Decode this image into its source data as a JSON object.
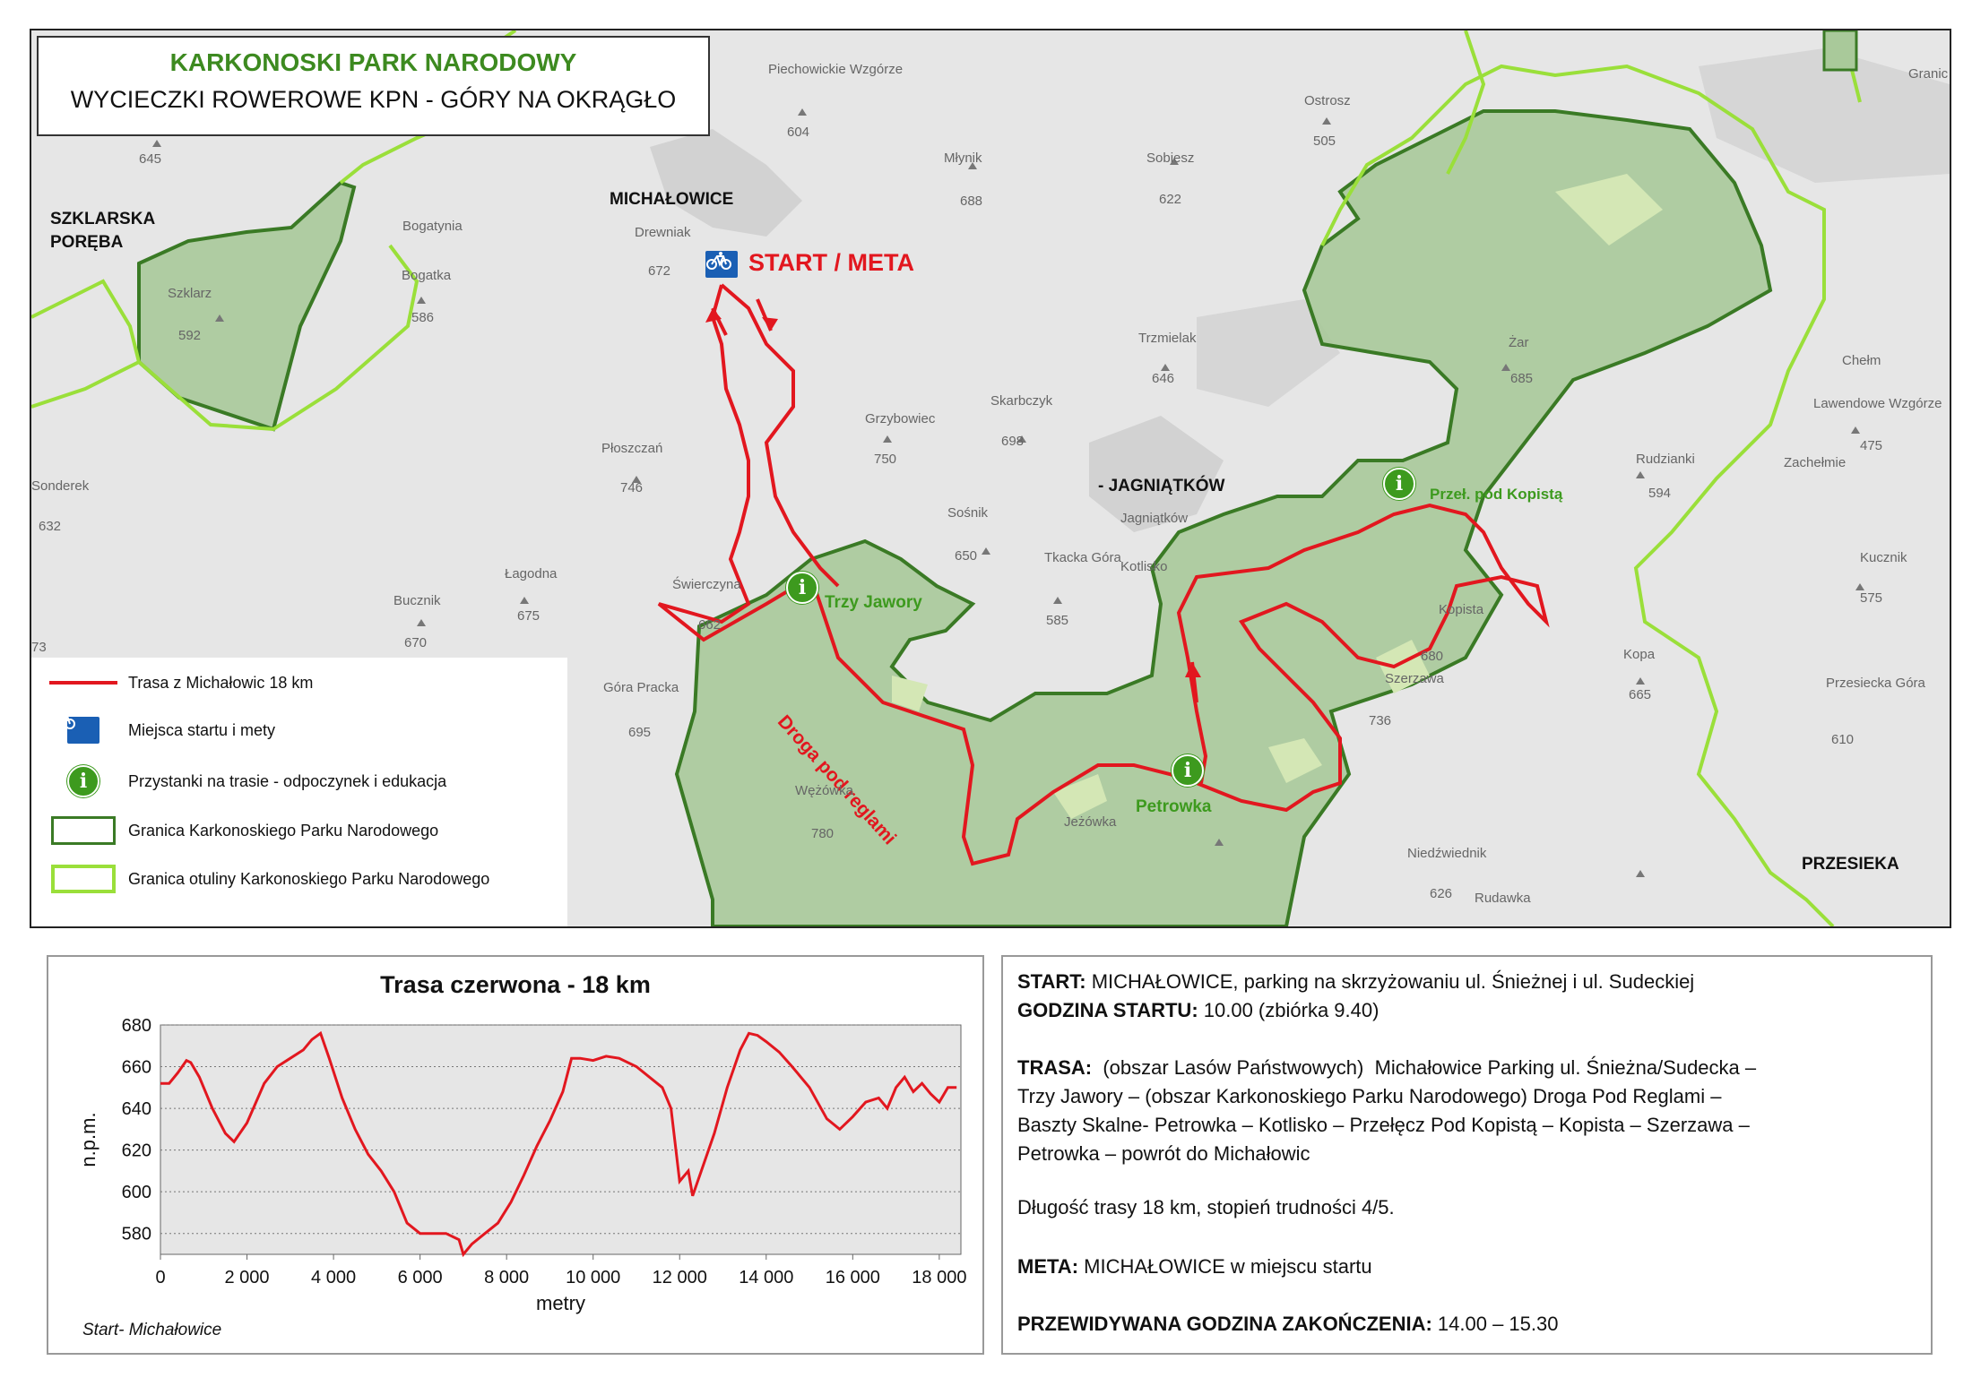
{
  "map": {
    "title": "KARKONOSKI PARK NARODOWY",
    "subtitle": "WYCIECZKI ROWEROWE KPN - GÓRY NA OKRĄGŁO",
    "start_label": "START / META",
    "towns": {
      "szklarska": "SZKLARSKA",
      "poreba": "PORĘBA",
      "michalowice": "MICHAŁOWICE",
      "jagniatkow": "- JAGNIĄTKÓW",
      "przesieka": "PRZESIEKA"
    },
    "stops": {
      "trzy_jawory": "Trzy Jawory",
      "petrowka": "Petrowka",
      "kopista": "Przeł. pod Kopistą"
    },
    "route_label": "Droga pod reglami",
    "places": [
      {
        "name": "Piechowickie Wzgórze",
        "elev": "604"
      },
      {
        "name": "Ostrosz",
        "elev": "505"
      },
      {
        "name": "Młynik",
        "elev": "688"
      },
      {
        "name": "Sobiesz",
        "elev": "622"
      },
      {
        "name": "Bogatynia",
        "elev": ""
      },
      {
        "name": "Bogatka",
        "elev": "586"
      },
      {
        "name": "Drewniak",
        "elev": "672"
      },
      {
        "name": "Szklarz",
        "elev": "592"
      },
      {
        "name": "Trzmielak",
        "elev": "646"
      },
      {
        "name": "Żar",
        "elev": "685"
      },
      {
        "name": "Chełm",
        "elev": ""
      },
      {
        "name": "Lawendowe Wzgórze",
        "elev": "475"
      },
      {
        "name": "Grzybowiec",
        "elev": "750"
      },
      {
        "name": "Skarbczyk",
        "elev": "698"
      },
      {
        "name": "Płoszczań",
        "elev": "746"
      },
      {
        "name": "Rudzianki",
        "elev": "594"
      },
      {
        "name": "Zachełmie",
        "elev": ""
      },
      {
        "name": "Sośnik",
        "elev": "650"
      },
      {
        "name": "Tkacka Góra",
        "elev": "585"
      },
      {
        "name": "Łagodna",
        "elev": "675"
      },
      {
        "name": "Kucznik",
        "elev": "575"
      },
      {
        "name": "Bucznik",
        "elev": "670"
      },
      {
        "name": "Kopista",
        "elev": "680"
      },
      {
        "name": "Szerzawa",
        "elev": "736"
      },
      {
        "name": "Kopa",
        "elev": "665"
      },
      {
        "name": "Przesiecka Góra",
        "elev": "610"
      },
      {
        "name": "Góra Pracka",
        "elev": "695"
      },
      {
        "name": "Wężówka",
        "elev": "780"
      },
      {
        "name": "Jeżówka",
        "elev": ""
      },
      {
        "name": "Niedźwiednik",
        "elev": "626"
      },
      {
        "name": "Rudawka",
        "elev": ""
      },
      {
        "name": "Sonderek",
        "elev": "632"
      },
      {
        "name": "Jagniątków",
        "elev": ""
      },
      {
        "name": "Kotlisko",
        "elev": ""
      },
      {
        "name": "Świerczyna",
        "elev": "662"
      },
      {
        "name": "",
        "elev": "645"
      },
      {
        "name": "",
        "elev": "73"
      },
      {
        "name": "Granic",
        "elev": ""
      }
    ]
  },
  "legend": {
    "route": "Trasa z Michałowic 18 km",
    "start": "Miejsca startu i mety",
    "stops": "Przystanki na trasie - odpoczynek i edukacja",
    "park_border": "Granica Karkonoskiego Parku Narodowego",
    "buffer_border": "Granica otuliny Karkonoskiego Parku Narodowego"
  },
  "chart_note": "Start- Michałowice",
  "chart_data": {
    "type": "line",
    "title": "Trasa czerwona - 18 km",
    "xlabel": "metry",
    "ylabel": "n.p.m.",
    "xlim": [
      0,
      18500
    ],
    "ylim": [
      570,
      680
    ],
    "yticks": [
      580,
      600,
      620,
      640,
      660,
      680
    ],
    "xticks": [
      0,
      2000,
      4000,
      6000,
      8000,
      10000,
      12000,
      14000,
      16000,
      18000
    ],
    "xtick_labels": [
      "0",
      "2 000",
      "4 000",
      "6 000",
      "8 000",
      "10 000",
      "12 000",
      "14 000",
      "16 000",
      "18 000"
    ],
    "grid": true,
    "color": "#e2171f",
    "series": [
      {
        "x": [
          0,
          200,
          400,
          600,
          700,
          900,
          1200,
          1500,
          1700,
          2000,
          2400,
          2700,
          3000,
          3300,
          3500,
          3700,
          3900,
          4200,
          4500,
          4800,
          5100,
          5400,
          5700,
          6000,
          6300,
          6600,
          6900,
          7000,
          7200,
          7500,
          7800,
          8100,
          8400,
          8700,
          9000,
          9300,
          9500,
          9700,
          10000,
          10300,
          10600,
          11000,
          11300,
          11600,
          11800,
          12000,
          12200,
          12300,
          12500,
          12800,
          13100,
          13400,
          13600,
          13800,
          14000,
          14300,
          14600,
          15000,
          15400,
          15700,
          16000,
          16300,
          16600,
          16800,
          17000,
          17200,
          17400,
          17600,
          17800,
          18000,
          18200,
          18400
        ],
        "y": [
          652,
          652,
          657,
          663,
          662,
          655,
          640,
          628,
          624,
          633,
          652,
          660,
          664,
          668,
          673,
          676,
          664,
          645,
          630,
          618,
          610,
          600,
          585,
          580,
          580,
          580,
          577,
          570,
          575,
          580,
          585,
          595,
          608,
          622,
          634,
          648,
          664,
          664,
          663,
          665,
          664,
          660,
          655,
          650,
          640,
          605,
          610,
          598,
          610,
          628,
          650,
          668,
          676,
          675,
          672,
          667,
          660,
          650,
          635,
          630,
          636,
          643,
          645,
          640,
          650,
          655,
          648,
          652,
          647,
          643,
          650,
          650
        ]
      }
    ]
  },
  "info": {
    "start_label": "START:",
    "start_text": " MICHAŁOWICE, parking na skrzyżowaniu ul. Śnieżnej i ul. Sudeckiej",
    "time_label": "GODZINA STARTU:",
    "time_text": " 10.00 (zbiórka 9.40)",
    "trasa_label": "TRASA:",
    "trasa_line1": "  (obszar Lasów Państwowych)  Michałowice Parking ul. Śnieżna/Sudecka –",
    "trasa_line2": "Trzy Jawory – (obszar Karkonoskiego Parku Narodowego)  Droga Pod Reglami –",
    "trasa_line3": "Baszty Skalne- Petrowka – Kotlisko – Przełęcz Pod Kopistą – Kopista – Szerzawa –",
    "trasa_line4": "Petrowka – powrót do Michałowic",
    "length_text": "Długość trasy 18 km, stopień trudności 4/5.",
    "meta_label": "META:",
    "meta_text": " MICHAŁOWICE w miejscu startu",
    "end_label": "PRZEWIDYWANA GODZINA ZAKOŃCZENIA:",
    "end_text": " 14.00 – 15.30"
  }
}
